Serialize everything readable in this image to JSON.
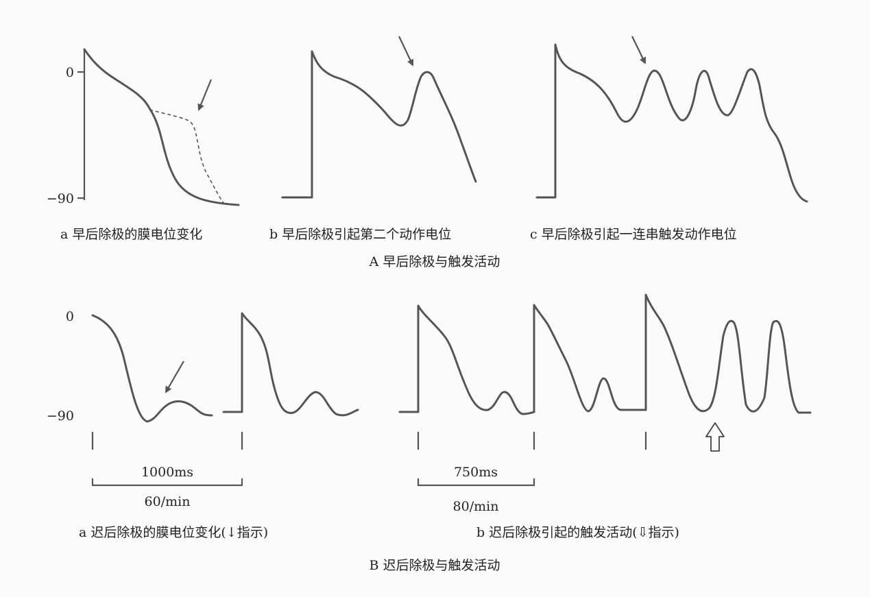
{
  "panel_A": {
    "title": "A 早后除极与触发活动",
    "y_tick_top": "0",
    "y_tick_bottom": "−90",
    "sub_a": "a 早后除极的膜电位变化",
    "sub_b": "b 早后除极引起第二个动作电位",
    "sub_c": "c 早后除极引起一连串触发动作电位"
  },
  "panel_B": {
    "title": "B 迟后除极与触发活动",
    "y_tick_top": "0",
    "y_tick_bottom": "−90",
    "scale_a_time": "1000ms",
    "scale_a_rate": "60/min",
    "scale_b_time": "750ms",
    "scale_b_rate": "80/min",
    "sub_a": "a 迟后除极的膜电位变化(↓指示)",
    "sub_b": "b 迟后除极引起的触发活动(⇩指示)"
  },
  "colors": {
    "trace": "#555555",
    "text": "#222222",
    "background": "#fbfbf9"
  }
}
